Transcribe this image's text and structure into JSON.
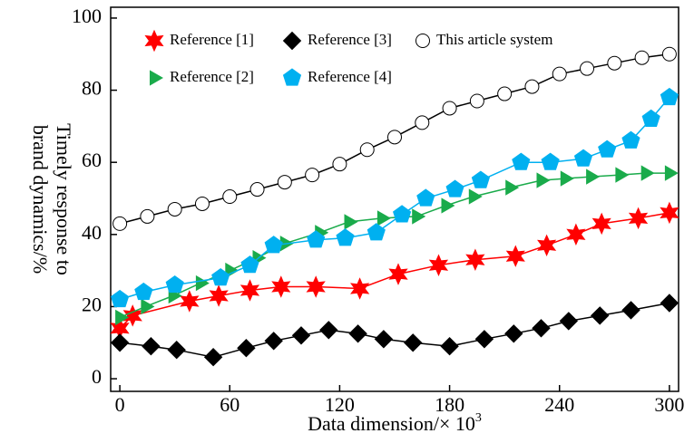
{
  "chart_data": {
    "type": "line",
    "x_label": {
      "text": "Data dimension/× 10",
      "superscript": "3"
    },
    "y_label": [
      "Timely response to",
      "brand dynamics/%"
    ],
    "xlim": [
      -5,
      305
    ],
    "ylim": [
      -3.5,
      103
    ],
    "xticks": [
      0,
      60,
      120,
      180,
      240,
      300
    ],
    "yticks": [
      0,
      20,
      40,
      60,
      80,
      100
    ],
    "grid": false,
    "legend": "upper left",
    "series": [
      {
        "name": "Reference [1]",
        "color": "#ff0000",
        "marker": "star",
        "x": [
          0,
          7,
          38,
          54,
          71,
          88,
          107,
          131,
          152,
          174,
          194,
          216,
          233,
          249,
          263,
          283,
          300
        ],
        "values": [
          14,
          17.5,
          21.5,
          23,
          24.5,
          25.5,
          25.5,
          25,
          29,
          31.5,
          33,
          34,
          37,
          40,
          43,
          44.5,
          46
        ]
      },
      {
        "name": "Reference [3]",
        "color": "#000000",
        "marker": "diamond",
        "x": [
          0,
          17,
          31,
          51,
          69,
          84,
          99,
          114,
          130,
          144,
          160,
          180,
          199,
          215,
          230,
          245,
          262,
          279,
          300
        ],
        "values": [
          10,
          9,
          8,
          6,
          8.5,
          10.5,
          12,
          13.5,
          12.5,
          11,
          10,
          9,
          11,
          12.5,
          14,
          16,
          17.5,
          19,
          21
        ]
      },
      {
        "name": "This article system",
        "color": "#000000",
        "marker": "circle",
        "x": [
          0,
          15,
          30,
          45,
          60,
          75,
          90,
          105,
          120,
          135,
          150,
          165,
          180,
          195,
          210,
          225,
          240,
          255,
          270,
          285,
          300
        ],
        "values": [
          43,
          45,
          47,
          48.5,
          50.5,
          52.5,
          54.5,
          56.5,
          59.5,
          63.5,
          67,
          71,
          75,
          77,
          79,
          81,
          84.5,
          86,
          87.5,
          89,
          90
        ]
      },
      {
        "name": "Reference [2]",
        "color": "#1aab4b",
        "marker": "triangle",
        "x": [
          0,
          14,
          29,
          44,
          60,
          75,
          90,
          109,
          125,
          143,
          162,
          178,
          193,
          213,
          230,
          243,
          257,
          273,
          287,
          300
        ],
        "values": [
          17,
          20,
          23,
          26.5,
          30,
          33.5,
          37.5,
          40.5,
          43.5,
          44.5,
          45,
          48,
          50.5,
          53,
          55,
          55.5,
          56,
          56.5,
          57,
          57
        ]
      },
      {
        "name": "Reference [4]",
        "color": "#00b0f0",
        "marker": "pentagon",
        "x": [
          0,
          13,
          30,
          55,
          71,
          84,
          107,
          123,
          140,
          154,
          167,
          183,
          197,
          219,
          235,
          253,
          266,
          279,
          290,
          300
        ],
        "values": [
          22,
          24,
          26,
          28,
          31.5,
          37,
          38.5,
          39,
          40.5,
          45.5,
          50,
          52.5,
          55,
          60,
          60,
          61,
          63.5,
          66,
          72,
          78
        ]
      }
    ]
  }
}
